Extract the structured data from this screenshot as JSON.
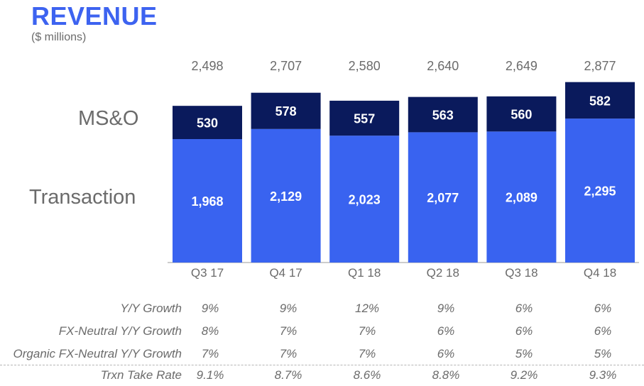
{
  "header": {
    "title": "REVENUE",
    "subtitle": "($ millions)"
  },
  "chart_data": {
    "type": "bar",
    "stacked": true,
    "title": "REVENUE",
    "subtitle": "($ millions)",
    "categories": [
      "Q3 17",
      "Q4 17",
      "Q1 18",
      "Q2 18",
      "Q3 18",
      "Q4 18"
    ],
    "series": [
      {
        "name": "Transaction",
        "values": [
          1968,
          2129,
          2023,
          2077,
          2089,
          2295
        ],
        "labels": [
          "1,968",
          "2,129",
          "2,023",
          "2,077",
          "2,089",
          "2,295"
        ],
        "color": "#3963f0"
      },
      {
        "name": "MS&O",
        "values": [
          530,
          578,
          557,
          563,
          560,
          582
        ],
        "labels": [
          "530",
          "578",
          "557",
          "563",
          "560",
          "582"
        ],
        "color": "#0a1a5c"
      }
    ],
    "totals": [
      2498,
      2707,
      2580,
      2640,
      2649,
      2877
    ],
    "total_labels": [
      "2,498",
      "2,707",
      "2,580",
      "2,640",
      "2,649",
      "2,877"
    ],
    "ylim": [
      0,
      3000
    ],
    "xlabel": "",
    "ylabel": "",
    "grid": false
  },
  "metrics": [
    {
      "label": "Y/Y Growth",
      "values": [
        "9%",
        "9%",
        "12%",
        "9%",
        "6%",
        "6%"
      ]
    },
    {
      "label": "FX-Neutral Y/Y Growth",
      "values": [
        "8%",
        "7%",
        "7%",
        "6%",
        "6%",
        "6%"
      ]
    },
    {
      "label": "Organic FX-Neutral Y/Y Growth",
      "values": [
        "7%",
        "7%",
        "7%",
        "6%",
        "5%",
        "5%"
      ]
    },
    {
      "label": "Trxn Take Rate",
      "values": [
        "9.1%",
        "8.7%",
        "8.6%",
        "8.8%",
        "9.2%",
        "9.3%"
      ]
    }
  ]
}
